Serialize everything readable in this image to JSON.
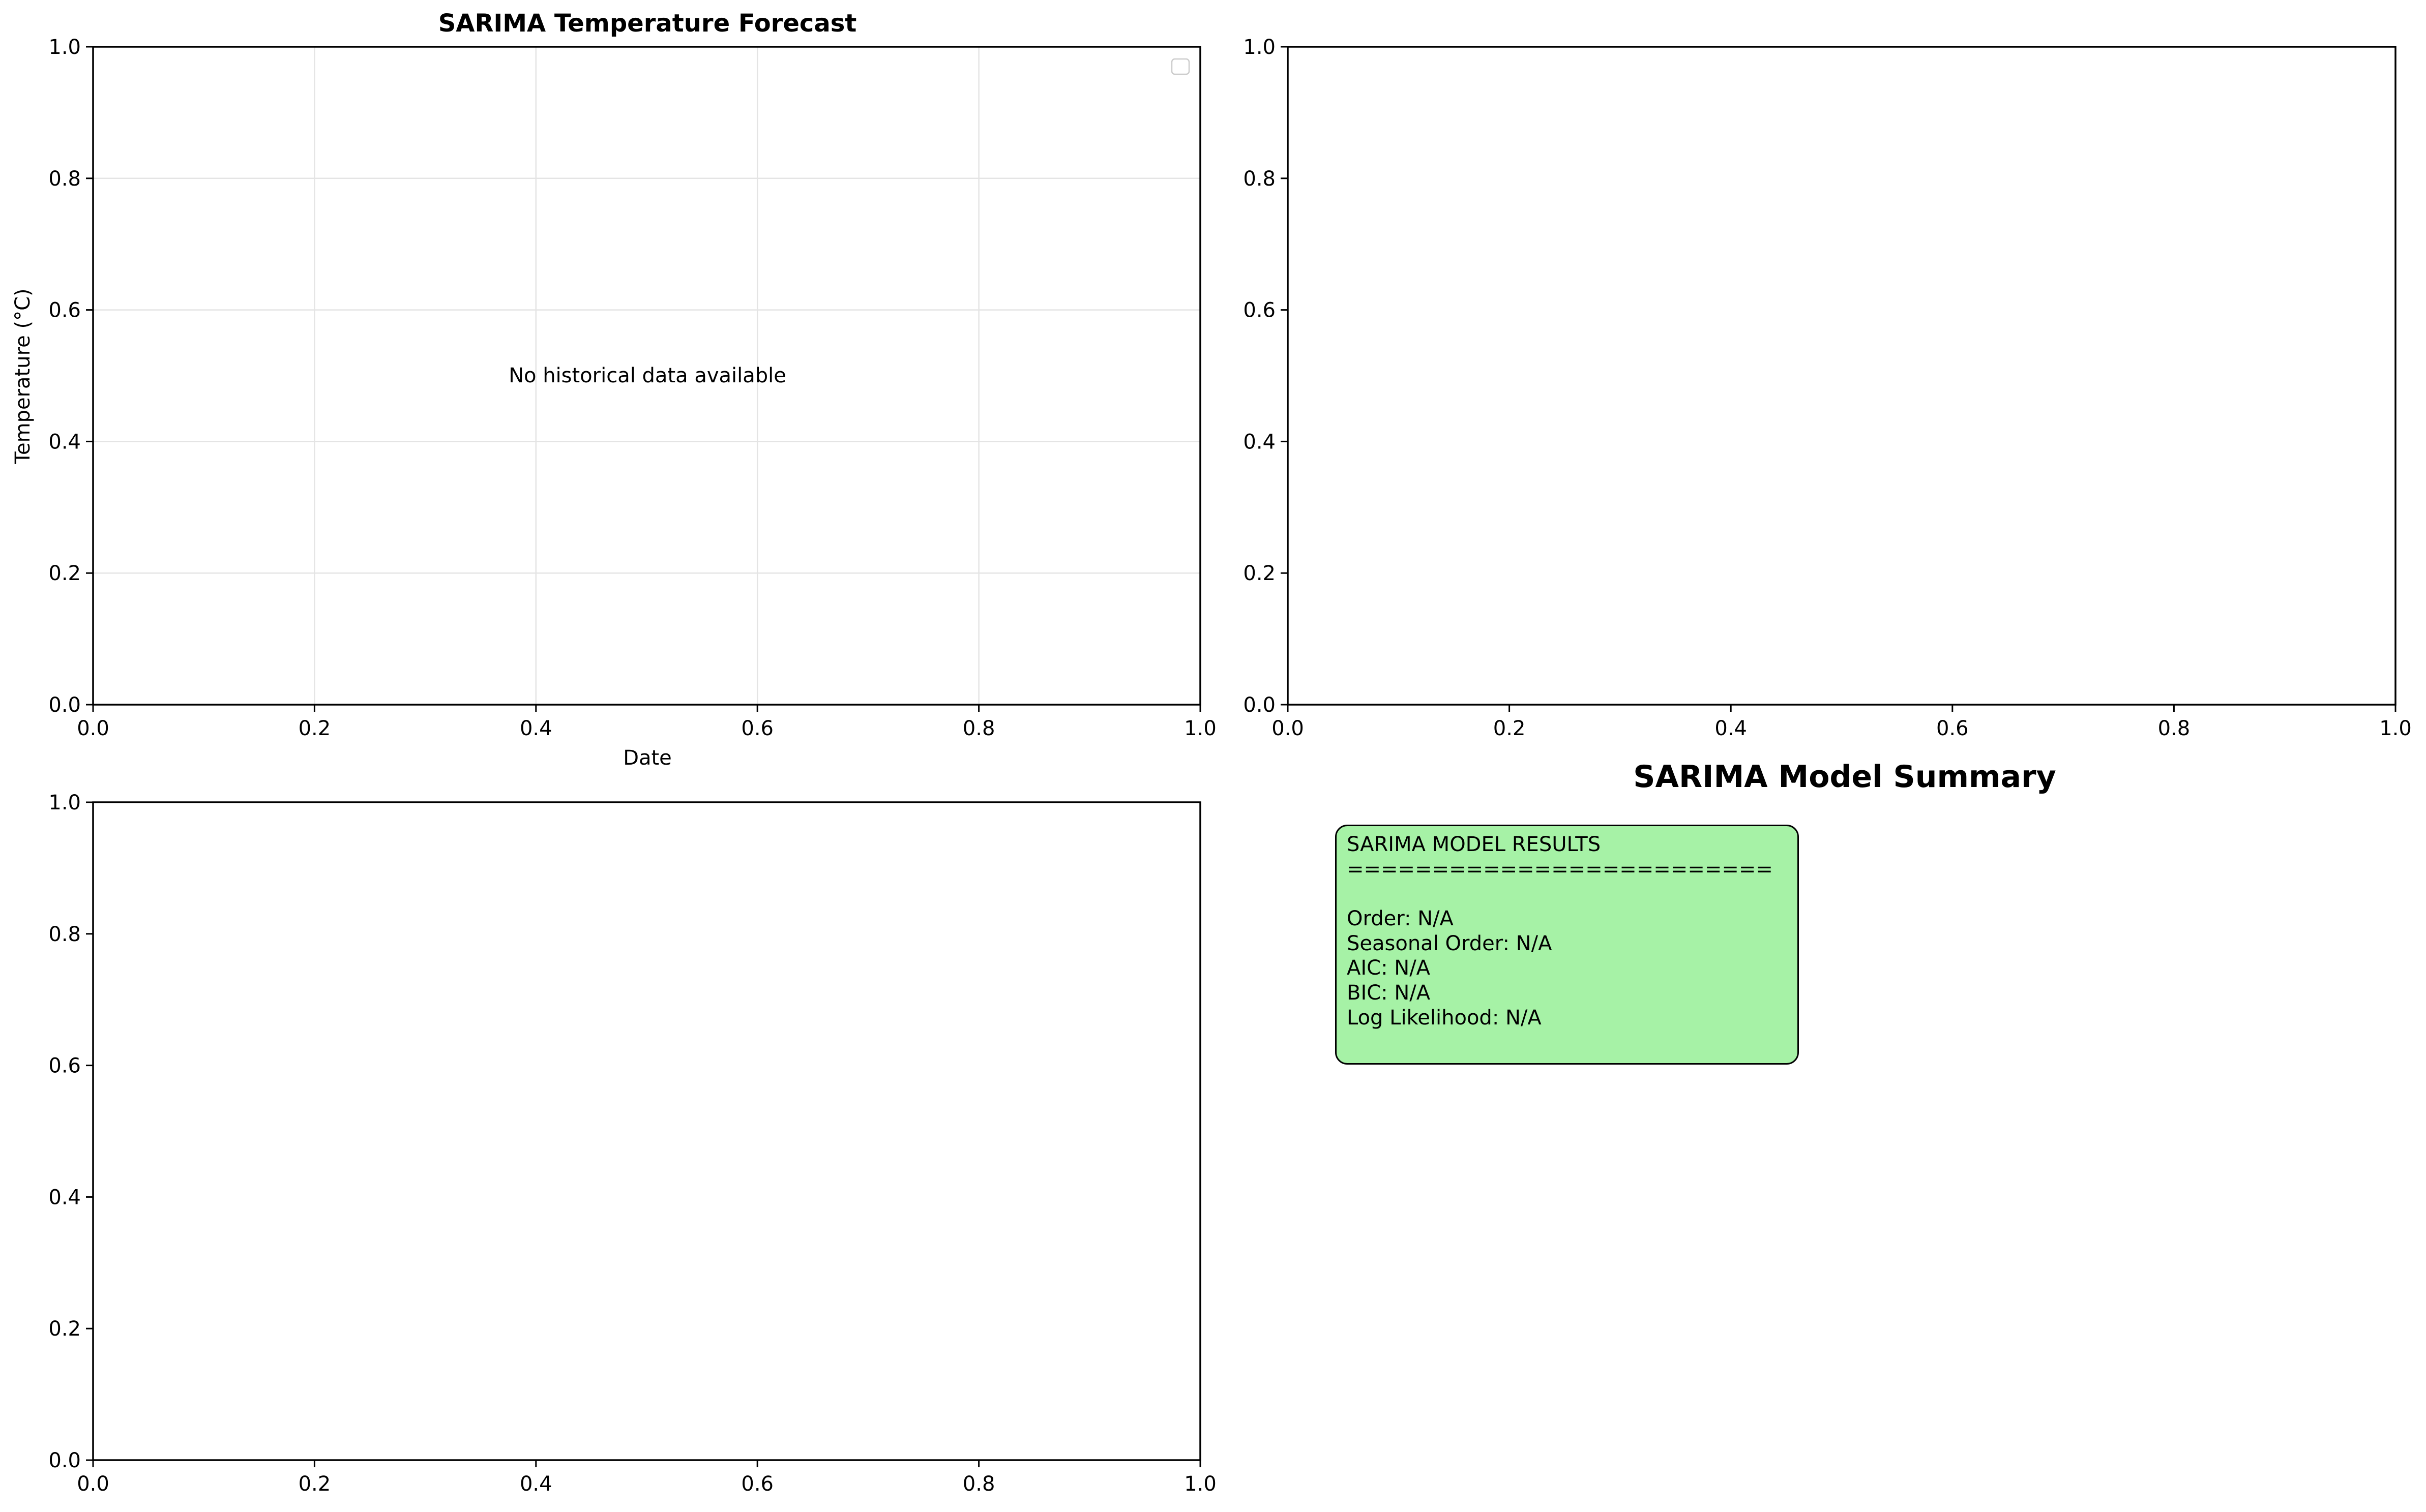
{
  "chart_data": [
    {
      "type": "line",
      "title": "SARIMA Temperature Forecast",
      "xlabel": "Date",
      "ylabel": "Temperature (°C)",
      "xlim": [
        0,
        1
      ],
      "ylim": [
        0,
        1
      ],
      "x_ticks": [
        "0.0",
        "0.2",
        "0.4",
        "0.6",
        "0.8",
        "1.0"
      ],
      "y_ticks": [
        "0.0",
        "0.2",
        "0.4",
        "0.6",
        "0.8",
        "1.0"
      ],
      "grid": true,
      "legend": "top-right (empty)",
      "series": [],
      "annotation": "No historical data available"
    },
    {
      "type": "line",
      "title": "",
      "xlabel": "",
      "ylabel": "",
      "xlim": [
        0,
        1
      ],
      "ylim": [
        0,
        1
      ],
      "x_ticks": [
        "0.0",
        "0.2",
        "0.4",
        "0.6",
        "0.8",
        "1.0"
      ],
      "y_ticks": [
        "0.0",
        "0.2",
        "0.4",
        "0.6",
        "0.8",
        "1.0"
      ],
      "grid": false,
      "series": []
    },
    {
      "type": "line",
      "title": "",
      "xlabel": "",
      "ylabel": "",
      "xlim": [
        0,
        1
      ],
      "ylim": [
        0,
        1
      ],
      "x_ticks": [
        "0.0",
        "0.2",
        "0.4",
        "0.6",
        "0.8",
        "1.0"
      ],
      "y_ticks": [
        "0.0",
        "0.2",
        "0.4",
        "0.6",
        "0.8",
        "1.0"
      ],
      "grid": false,
      "series": []
    }
  ],
  "summary": {
    "title": "SARIMA Model Summary",
    "box_color": "#a6f2a6",
    "lines": [
      "SARIMA MODEL RESULTS",
      "=========================",
      "",
      "Order: N/A",
      "Seasonal Order: N/A",
      "AIC: N/A",
      "BIC: N/A",
      "Log Likelihood: N/A"
    ]
  }
}
